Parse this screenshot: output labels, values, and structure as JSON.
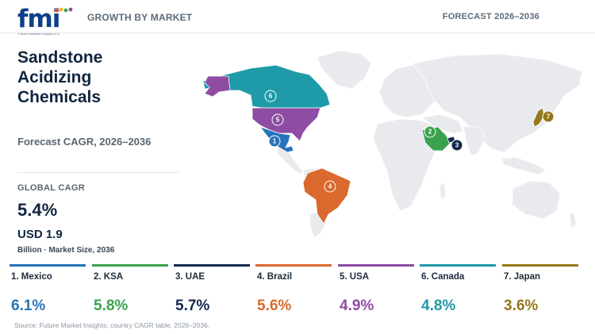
{
  "header": {
    "logo_text": "fmi",
    "logo_tagline": "Future Market Insights Inc.",
    "section_label": "GROWTH BY MARKET",
    "forecast_label": "FORECAST 2026–2036"
  },
  "panel": {
    "title": "Sandstone Acidizing Chemicals",
    "subtitle": "Forecast CAGR, 2026–2036",
    "kpi_label": "GLOBAL CAGR",
    "kpi_value": "5.4%",
    "market_size": "USD 1.9",
    "market_size_note": "Billion · Market Size, 2036"
  },
  "colors": {
    "base_land": "#e8eaed",
    "mexico": "#2874ba",
    "ksa": "#3aa24e",
    "uae": "#15294d",
    "brazil": "#d9692d",
    "usa": "#8e4ca3",
    "canada": "#1f9aa8",
    "japan": "#94781a"
  },
  "countries": [
    {
      "rank": "1",
      "name": "1. Mexico",
      "cagr": "6.1%",
      "color": "#2874ba"
    },
    {
      "rank": "2",
      "name": "2. KSA",
      "cagr": "5.8%",
      "color": "#3aa24e"
    },
    {
      "rank": "3",
      "name": "3. UAE",
      "cagr": "5.7%",
      "color": "#15294d"
    },
    {
      "rank": "4",
      "name": "4. Brazil",
      "cagr": "5.6%",
      "color": "#d9692d"
    },
    {
      "rank": "5",
      "name": "5. USA",
      "cagr": "4.9%",
      "color": "#8e4ca3"
    },
    {
      "rank": "6",
      "name": "6. Canada",
      "cagr": "4.8%",
      "color": "#1f9aa8"
    },
    {
      "rank": "7",
      "name": "7. Japan",
      "cagr": "3.6%",
      "color": "#94781a"
    }
  ],
  "source": "Source: Future Market Insights; country CAGR table, 2026–2036."
}
